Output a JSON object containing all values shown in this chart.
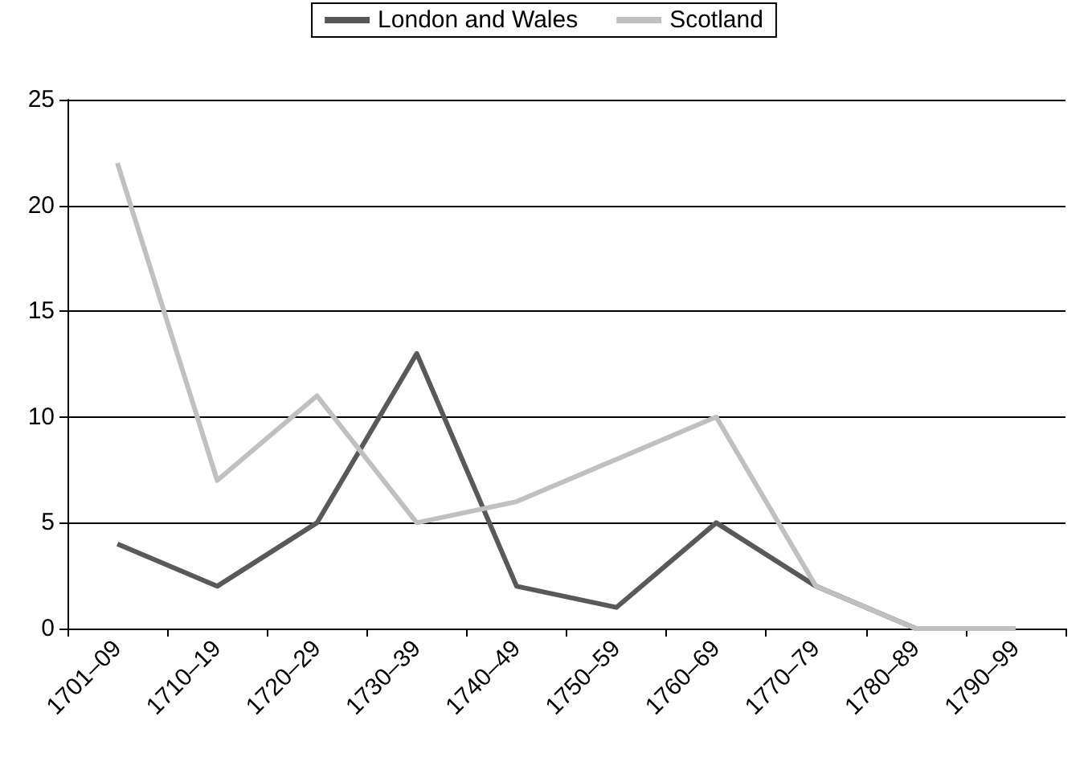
{
  "chart_data": {
    "type": "line",
    "categories": [
      "1701–09",
      "1710–19",
      "1720–29",
      "1730–39",
      "1740–49",
      "1750–59",
      "1760–69",
      "1770–79",
      "1780–89",
      "1790–99"
    ],
    "series": [
      {
        "name": "London and Wales",
        "color": "#595959",
        "values": [
          4,
          2,
          5,
          13,
          2,
          1,
          5,
          2,
          0,
          0
        ]
      },
      {
        "name": "Scotland",
        "color": "#c0c0c0",
        "values": [
          22,
          7,
          11,
          5,
          6,
          8,
          10,
          2,
          0,
          0
        ]
      }
    ],
    "ylim": [
      0,
      25
    ],
    "yticks": [
      0,
      5,
      10,
      15,
      20,
      25
    ],
    "grid": "y",
    "legend": "top",
    "marker": "none",
    "line_style": "solid"
  }
}
